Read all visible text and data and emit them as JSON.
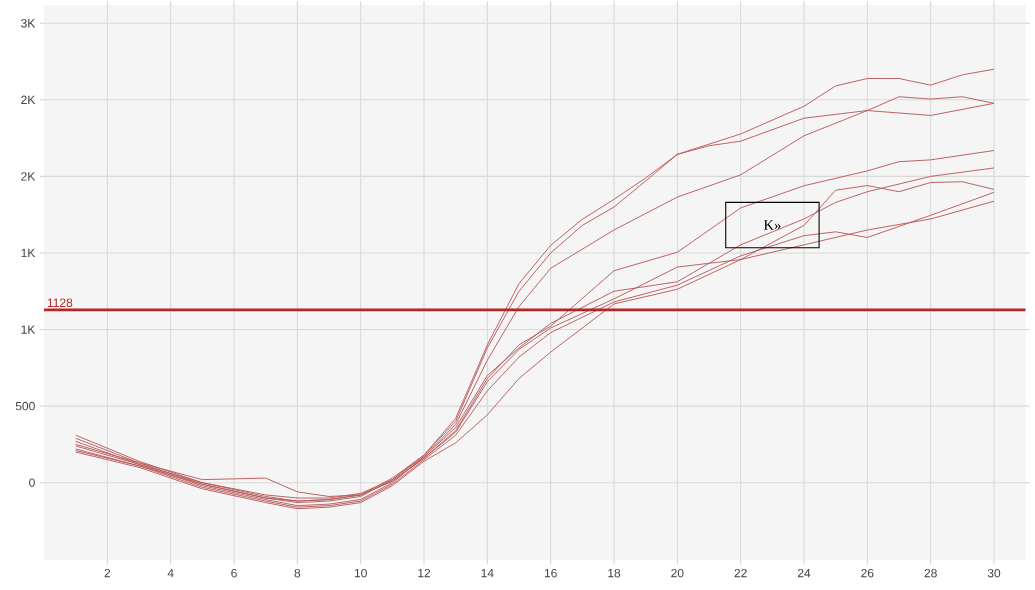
{
  "chart_data": {
    "type": "line",
    "grid": true,
    "marker": "none",
    "line_style": "solid",
    "xlim": [
      0,
      31
    ],
    "ylim": [
      -506,
      3117
    ],
    "xticks": [
      2,
      4,
      6,
      8,
      10,
      12,
      14,
      16,
      18,
      20,
      22,
      24,
      26,
      28,
      30
    ],
    "yticks": [
      0,
      500,
      {
        "value": 1000,
        "label": "1K"
      },
      {
        "value": 1500,
        "label": "1K"
      },
      {
        "value": 2000,
        "label": "2K"
      },
      {
        "value": 2500,
        "label": "2K"
      },
      {
        "value": 3000,
        "label": "3K"
      }
    ],
    "ref_lines": [
      {
        "axis": "y",
        "value": 1128,
        "label": "1128",
        "color": "#b02828"
      }
    ],
    "annotations": [
      "K»"
    ],
    "series": [
      {
        "color": "#b85a5a",
        "x": [
          1,
          3,
          5,
          7,
          8,
          9,
          10,
          11,
          12,
          13,
          14,
          15,
          16,
          17,
          18,
          19,
          20,
          22,
          24,
          25,
          26,
          27,
          28,
          29,
          30
        ],
        "values": [
          310,
          140,
          0,
          -90,
          -120,
          -110,
          -80,
          30,
          180,
          420,
          900,
          1300,
          1550,
          1720,
          1850,
          1990,
          2144,
          2277,
          2458,
          2591,
          2639,
          2639,
          2596,
          2663,
          2700
        ]
      },
      {
        "color": "#b85a5a",
        "x": [
          1,
          3,
          5,
          7,
          8,
          9,
          10,
          11,
          12,
          13,
          14,
          15,
          16,
          17,
          18,
          19,
          20,
          21,
          22,
          24,
          26,
          27,
          28,
          29,
          30
        ],
        "values": [
          290,
          130,
          -10,
          -100,
          -130,
          -120,
          -90,
          20,
          180,
          400,
          880,
          1250,
          1500,
          1680,
          1800,
          1970,
          2144,
          2200,
          2230,
          2380,
          2430,
          2520,
          2505,
          2520,
          2477
        ]
      },
      {
        "color": "#b85a5a",
        "x": [
          1,
          3,
          5,
          7,
          8,
          9,
          10,
          11,
          12,
          13,
          14,
          15,
          16,
          18,
          20,
          22,
          24,
          26,
          28,
          30
        ],
        "values": [
          270,
          120,
          -20,
          -110,
          -150,
          -140,
          -110,
          0,
          170,
          380,
          800,
          1150,
          1400,
          1650,
          1865,
          2010,
          2265,
          2430,
          2398,
          2477
        ]
      },
      {
        "color": "#b85a5a",
        "x": [
          1,
          3,
          5,
          7,
          8,
          9,
          10,
          11,
          12,
          13,
          14,
          15,
          16,
          18,
          20,
          22,
          24,
          26,
          27,
          28,
          30
        ],
        "values": [
          250,
          130,
          20,
          30,
          -60,
          -90,
          -80,
          10,
          160,
          340,
          680,
          900,
          1022,
          1384,
          1505,
          1794,
          1939,
          2036,
          2096,
          2108,
          2169
        ]
      },
      {
        "color": "#b85a5a",
        "x": [
          1,
          3,
          5,
          7,
          8,
          9,
          10,
          11,
          12,
          13,
          14,
          15,
          16,
          18,
          20,
          22,
          24,
          25,
          26,
          27,
          28,
          30
        ],
        "values": [
          240,
          120,
          0,
          -80,
          -100,
          -100,
          -70,
          20,
          170,
          360,
          700,
          880,
          1040,
          1250,
          1312,
          1553,
          1722,
          1830,
          1900,
          1950,
          2000,
          2055
        ]
      },
      {
        "color": "#b85a5a",
        "x": [
          1,
          3,
          5,
          7,
          8,
          9,
          10,
          11,
          12,
          13,
          14,
          15,
          16,
          18,
          20,
          22,
          24,
          25,
          26,
          27,
          28,
          29,
          30
        ],
        "values": [
          220,
          110,
          -10,
          -100,
          -120,
          -110,
          -80,
          10,
          160,
          330,
          660,
          870,
          1010,
          1200,
          1408,
          1457,
          1680,
          1910,
          1940,
          1900,
          1960,
          1965,
          1915
        ]
      },
      {
        "color": "#b85a5a",
        "x": [
          1,
          3,
          5,
          7,
          8,
          9,
          10,
          11,
          12,
          13,
          14,
          15,
          16,
          18,
          20,
          22,
          24,
          25,
          26,
          28,
          30
        ],
        "values": [
          210,
          110,
          -30,
          -120,
          -160,
          -150,
          -120,
          -10,
          150,
          310,
          600,
          820,
          980,
          1180,
          1290,
          1481,
          1613,
          1638,
          1601,
          1746,
          1896
        ]
      },
      {
        "color": "#b85a5a",
        "x": [
          1,
          3,
          5,
          7,
          8,
          9,
          10,
          11,
          12,
          13,
          14,
          15,
          16,
          18,
          20,
          22,
          24,
          26,
          28,
          30
        ],
        "values": [
          200,
          100,
          -40,
          -130,
          -170,
          -160,
          -130,
          -20,
          140,
          260,
          443,
          680,
          853,
          1167,
          1263,
          1457,
          1553,
          1650,
          1722,
          1838
        ]
      }
    ]
  }
}
